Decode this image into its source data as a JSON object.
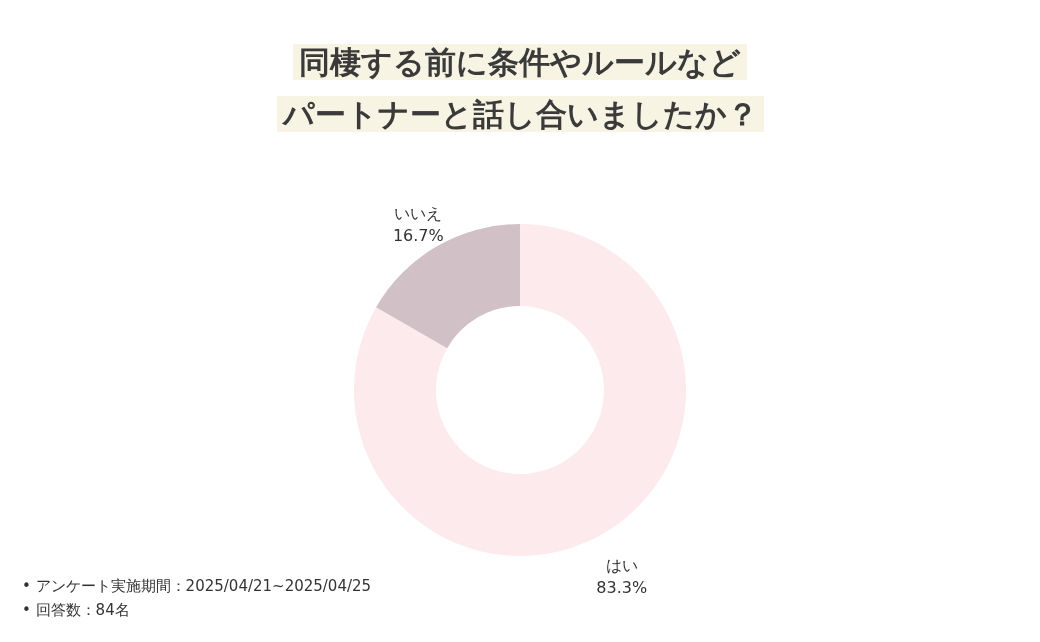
{
  "chart_data": {
    "type": "donut",
    "title": "同棲する前に条件やルールなど",
    "subtitle": "パートナーと話し合いましたか？",
    "categories": [
      "はい",
      "いいえ"
    ],
    "values": [
      83.3,
      16.7
    ],
    "colors": [
      "#fdeaed",
      "#d1c1c7"
    ],
    "value_labels": [
      "83.3%",
      "16.7%"
    ],
    "annotations": [
      "• アンケート実施期間：2025/04/21~2025/04/25",
      "• 回答数：84名"
    ]
  }
}
